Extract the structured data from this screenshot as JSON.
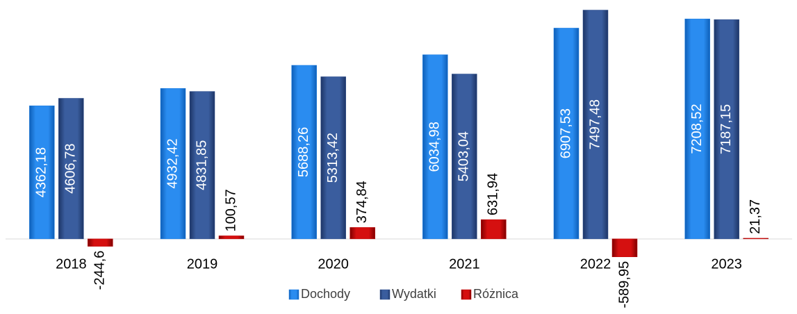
{
  "chart_data": {
    "type": "bar",
    "categories": [
      "2018",
      "2019",
      "2020",
      "2021",
      "2022",
      "2023"
    ],
    "series": [
      {
        "name": "Dochody",
        "color": "#1e7fe3",
        "values": [
          4362.18,
          4932.42,
          5688.26,
          6034.98,
          6907.53,
          7208.52
        ],
        "value_labels": [
          "4362,18",
          "4932,42",
          "5688,26",
          "6034,98",
          "6907,53",
          "7208,52"
        ]
      },
      {
        "name": "Wydatki",
        "color": "#2e4f8e",
        "values": [
          4606.78,
          4831.85,
          5313.42,
          5403.04,
          7497.48,
          7187.15
        ],
        "value_labels": [
          "4606,78",
          "4831,85",
          "5313,42",
          "5403,04",
          "7497,48",
          "7187,15"
        ]
      },
      {
        "name": "Różnica",
        "color": "#c00000",
        "values": [
          -244.6,
          100.57,
          374.84,
          631.94,
          -589.95,
          21.37
        ],
        "value_labels": [
          "-244,6",
          "100,57",
          "374,84",
          "631,94",
          "-589,95",
          "21,37"
        ]
      }
    ],
    "ylim": [
      -800,
      7600
    ],
    "legend": "bottom"
  }
}
